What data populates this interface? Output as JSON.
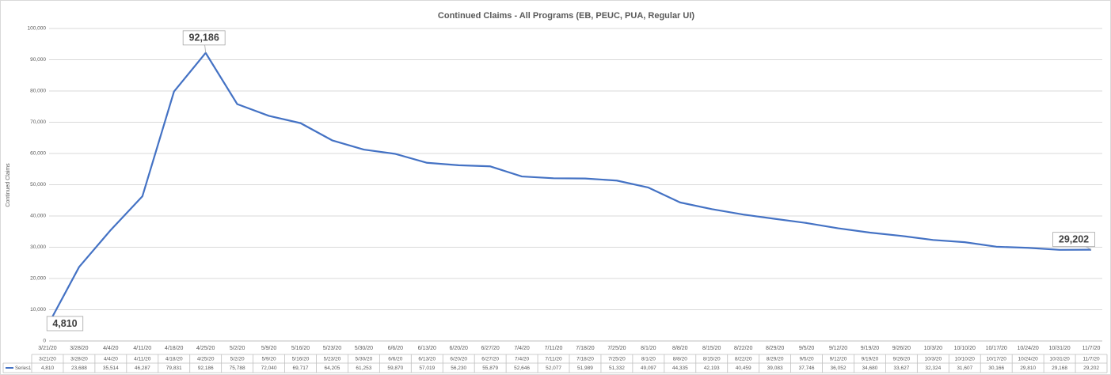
{
  "chart_data": {
    "type": "line",
    "title": "Continued Claims - All Programs (EB, PEUC, PUA, Regular UI)",
    "y_label": "Continued Claims",
    "categories": [
      "3/21/20",
      "3/28/20",
      "4/4/20",
      "4/11/20",
      "4/18/20",
      "4/25/20",
      "5/2/20",
      "5/9/20",
      "5/16/20",
      "5/23/20",
      "5/30/20",
      "6/6/20",
      "6/13/20",
      "6/20/20",
      "6/27/20",
      "7/4/20",
      "7/11/20",
      "7/18/20",
      "7/25/20",
      "8/1/20",
      "8/8/20",
      "8/15/20",
      "8/22/20",
      "8/29/20",
      "9/5/20",
      "9/12/20",
      "9/19/20",
      "9/26/20",
      "10/3/20",
      "10/10/20",
      "10/17/20",
      "10/24/20",
      "10/31/20",
      "11/7/20"
    ],
    "series": [
      {
        "name": "Series1",
        "color": "#4472c4",
        "values": [
          4810,
          23688,
          35514,
          46287,
          79831,
          92186,
          75788,
          72040,
          69717,
          64205,
          61253,
          59870,
          57019,
          56230,
          55879,
          52646,
          52077,
          51989,
          51332,
          49097,
          44335,
          42193,
          40459,
          39083,
          37746,
          36052,
          34680,
          33627,
          32324,
          31607,
          30166,
          29810,
          29168,
          29202
        ],
        "value_labels": [
          "4,810",
          "23,688",
          "35,514",
          "46,287",
          "79,831",
          "92,186",
          "75,788",
          "72,040",
          "69,717",
          "64,205",
          "61,253",
          "59,870",
          "57,019",
          "56,230",
          "55,879",
          "52,646",
          "52,077",
          "51,989",
          "51,332",
          "49,097",
          "44,335",
          "42,193",
          "40,459",
          "39,083",
          "37,746",
          "36,052",
          "34,680",
          "33,627",
          "32,324",
          "31,607",
          "30,166",
          "29,810",
          "29,168",
          "29,202"
        ]
      }
    ],
    "ylim": [
      0,
      100000
    ],
    "yticks": [
      0,
      {
        "value": 10000,
        "label": "10,000"
      },
      {
        "value": 20000,
        "label": "20,000"
      },
      {
        "value": 30000,
        "label": "30,000"
      },
      {
        "value": 40000,
        "label": "40,000"
      },
      {
        "value": 50000,
        "label": "50,000"
      },
      {
        "value": 60000,
        "label": "60,000"
      },
      {
        "value": 70000,
        "label": "70,000"
      },
      {
        "value": 80000,
        "label": "80,000"
      },
      {
        "value": 90000,
        "label": "90,000"
      },
      {
        "value": 100000,
        "label": "100,000"
      }
    ],
    "grid": true
  }
}
